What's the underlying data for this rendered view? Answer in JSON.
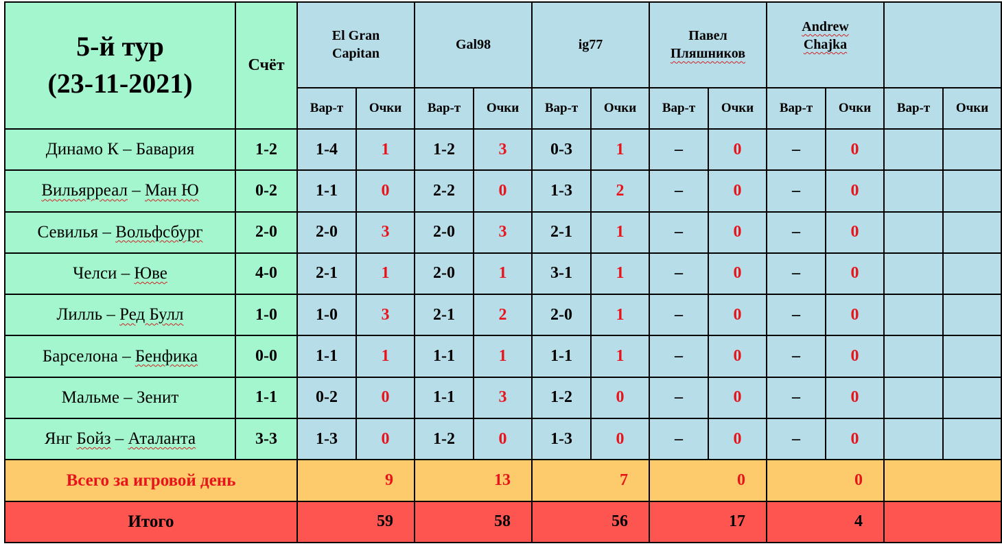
{
  "header": {
    "round_title_line1": "5-й тур",
    "round_title_line2": "(23-11-2021)",
    "score_label": "Счёт"
  },
  "players": [
    {
      "line1": "El Gran",
      "line2": "Capitan"
    },
    {
      "line1": "Gal98",
      "line2": ""
    },
    {
      "line1": "ig77",
      "line2": ""
    },
    {
      "line1": "Павел",
      "line2": "Пляшников"
    },
    {
      "line1": "Andrew",
      "line2": "Chajka"
    },
    {
      "line1": "",
      "line2": ""
    }
  ],
  "subheaders": {
    "variant": "Вар-т",
    "points": "Очки"
  },
  "matches": [
    {
      "home": "Динамо К",
      "away": "Бавария",
      "score": "1-2",
      "picks": [
        {
          "v": "1-4",
          "p": "1"
        },
        {
          "v": "1-2",
          "p": "3"
        },
        {
          "v": "0-3",
          "p": "1"
        },
        {
          "v": "–",
          "p": "0"
        },
        {
          "v": "–",
          "p": "0"
        },
        {
          "v": "",
          "p": ""
        }
      ]
    },
    {
      "home": "Вильярреал",
      "away": "Ман Ю",
      "score": "0-2",
      "picks": [
        {
          "v": "1-1",
          "p": "0"
        },
        {
          "v": "2-2",
          "p": "0"
        },
        {
          "v": "1-3",
          "p": "2"
        },
        {
          "v": "–",
          "p": "0"
        },
        {
          "v": "–",
          "p": "0"
        },
        {
          "v": "",
          "p": ""
        }
      ]
    },
    {
      "home": "Севилья",
      "away": "Вольфсбург",
      "score": "2-0",
      "picks": [
        {
          "v": "2-0",
          "p": "3"
        },
        {
          "v": "2-0",
          "p": "3"
        },
        {
          "v": "2-1",
          "p": "1"
        },
        {
          "v": "–",
          "p": "0"
        },
        {
          "v": "–",
          "p": "0"
        },
        {
          "v": "",
          "p": ""
        }
      ]
    },
    {
      "home": "Челси",
      "away": "Юве",
      "score": "4-0",
      "picks": [
        {
          "v": "2-1",
          "p": "1"
        },
        {
          "v": "2-0",
          "p": "1"
        },
        {
          "v": "3-1",
          "p": "1"
        },
        {
          "v": "–",
          "p": "0"
        },
        {
          "v": "–",
          "p": "0"
        },
        {
          "v": "",
          "p": ""
        }
      ]
    },
    {
      "home": "Лилль",
      "away": "Ред Булл",
      "score": "1-0",
      "picks": [
        {
          "v": "1-0",
          "p": "3"
        },
        {
          "v": "2-1",
          "p": "2"
        },
        {
          "v": "2-0",
          "p": "1"
        },
        {
          "v": "–",
          "p": "0"
        },
        {
          "v": "–",
          "p": "0"
        },
        {
          "v": "",
          "p": ""
        }
      ]
    },
    {
      "home": "Барселона",
      "away": "Бенфика",
      "score": "0-0",
      "picks": [
        {
          "v": "1-1",
          "p": "1"
        },
        {
          "v": "1-1",
          "p": "1"
        },
        {
          "v": "1-1",
          "p": "1"
        },
        {
          "v": "–",
          "p": "0"
        },
        {
          "v": "–",
          "p": "0"
        },
        {
          "v": "",
          "p": ""
        }
      ]
    },
    {
      "home": "Мальме",
      "away": "Зенит",
      "score": "1-1",
      "picks": [
        {
          "v": "0-2",
          "p": "0"
        },
        {
          "v": "1-1",
          "p": "3"
        },
        {
          "v": "1-2",
          "p": "0"
        },
        {
          "v": "–",
          "p": "0"
        },
        {
          "v": "–",
          "p": "0"
        },
        {
          "v": "",
          "p": ""
        }
      ]
    },
    {
      "home": "Янг Бойз",
      "away": "Аталанта",
      "score": "3-3",
      "picks": [
        {
          "v": "1-3",
          "p": "0"
        },
        {
          "v": "1-2",
          "p": "0"
        },
        {
          "v": "1-3",
          "p": "0"
        },
        {
          "v": "–",
          "p": "0"
        },
        {
          "v": "–",
          "p": "0"
        },
        {
          "v": "",
          "p": ""
        }
      ]
    }
  ],
  "day_total": {
    "label": "Всего за игровой день",
    "values": [
      "9",
      "13",
      "7",
      "0",
      "0",
      ""
    ]
  },
  "grand_total": {
    "label": "Итого",
    "values": [
      "59",
      "58",
      "56",
      "17",
      "4",
      ""
    ]
  }
}
